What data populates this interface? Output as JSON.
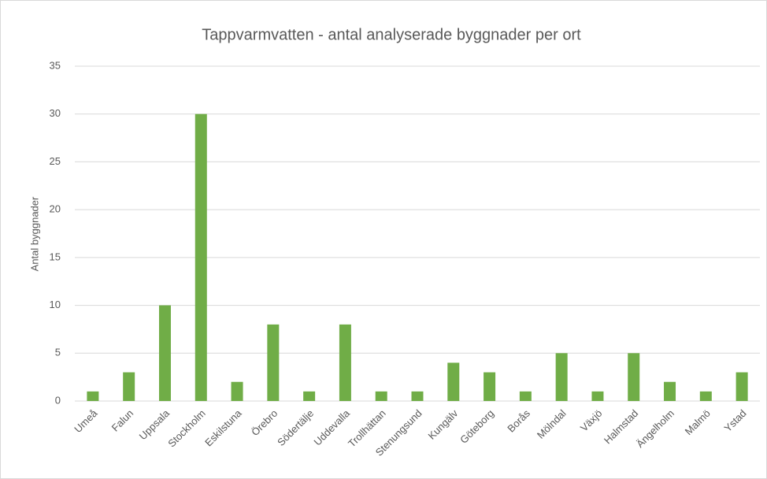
{
  "chart_data": {
    "type": "bar",
    "title": "Tappvarmvatten - antal analyserade byggnader per ort",
    "y_label": "Antal byggnader",
    "categories": [
      "Umeå",
      "Falun",
      "Uppsala",
      "Stockholm",
      "Eskilstuna",
      "Örebro",
      "Södertälje",
      "Uddevalla",
      "Trollhättan",
      "Stenungsund",
      "Kungälv",
      "Göteborg",
      "Borås",
      "Mölndal",
      "Växjö",
      "Halmstad",
      "Ängelholm",
      "Malmö",
      "Ystad"
    ],
    "values": [
      1,
      3,
      10,
      30,
      2,
      8,
      1,
      8,
      1,
      1,
      4,
      3,
      1,
      5,
      1,
      5,
      2,
      1,
      3
    ],
    "color": "#70ad47",
    "ylim": [
      0,
      35
    ],
    "yticks": [
      0,
      5,
      10,
      15,
      20,
      25,
      30,
      35
    ],
    "grid": true
  }
}
